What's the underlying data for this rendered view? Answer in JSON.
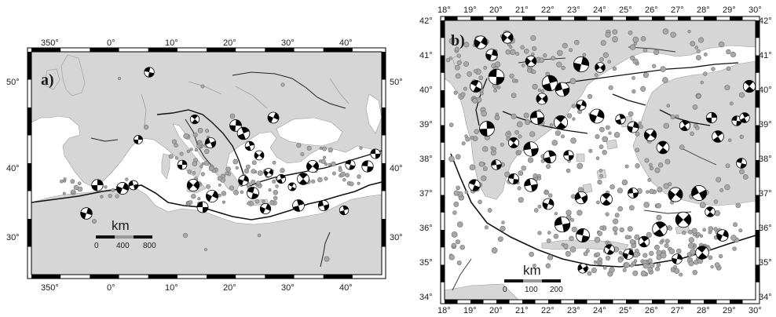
{
  "colors": {
    "land": "#d6d6d6",
    "sea": "#ffffff",
    "border": "#000000",
    "epicenter": "#a8a8a8",
    "fault": "#111111"
  },
  "panels": [
    {
      "id": "a",
      "label": "a)",
      "lon_ticks": [
        "350°",
        "0°",
        "10°",
        "20°",
        "30°",
        "40°"
      ],
      "lat_ticks": [
        "50°",
        "40°",
        "30°"
      ],
      "scale": {
        "title": "km",
        "values": [
          "0",
          "400",
          "800"
        ]
      }
    },
    {
      "id": "b",
      "label": "b)",
      "lon_ticks": [
        "18°",
        "19°",
        "20°",
        "21°",
        "22°",
        "23°",
        "24°",
        "25°",
        "26°",
        "27°",
        "28°",
        "29°",
        "30°"
      ],
      "lat_ticks": [
        "42°",
        "41°",
        "40°",
        "39°",
        "38°",
        "37°",
        "36°",
        "35°",
        "34°"
      ],
      "scale": {
        "title": "km",
        "values": [
          "0",
          "100",
          "200"
        ]
      }
    }
  ]
}
